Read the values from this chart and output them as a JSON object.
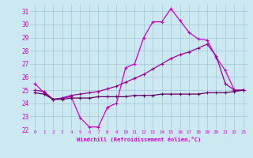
{
  "xlabel": "Windchill (Refroidissement éolien,°C)",
  "bg_color": "#cce8f0",
  "grid_color": "#aaccdd",
  "x_values": [
    0,
    1,
    2,
    3,
    4,
    5,
    6,
    7,
    8,
    9,
    10,
    11,
    12,
    13,
    14,
    15,
    16,
    17,
    18,
    19,
    20,
    21,
    22,
    23
  ],
  "line1": [
    25.5,
    24.8,
    24.3,
    24.4,
    24.5,
    22.9,
    22.2,
    22.2,
    23.7,
    24.0,
    26.7,
    27.0,
    29.0,
    30.2,
    30.2,
    31.2,
    30.3,
    29.4,
    28.9,
    28.8,
    27.5,
    26.5,
    25.0,
    25.0
  ],
  "line2": [
    25.0,
    24.9,
    24.3,
    24.4,
    24.6,
    24.7,
    24.8,
    24.9,
    25.1,
    25.3,
    25.6,
    25.9,
    26.2,
    26.6,
    27.0,
    27.4,
    27.7,
    27.9,
    28.2,
    28.5,
    27.6,
    25.5,
    25.0,
    25.0
  ],
  "line3": [
    24.8,
    24.7,
    24.3,
    24.3,
    24.4,
    24.4,
    24.4,
    24.5,
    24.5,
    24.5,
    24.5,
    24.6,
    24.6,
    24.6,
    24.7,
    24.7,
    24.7,
    24.7,
    24.7,
    24.8,
    24.8,
    24.8,
    24.9,
    25.0
  ],
  "ylim": [
    22,
    31.5
  ],
  "xlim": [
    -0.5,
    23.5
  ],
  "yticks": [
    22,
    23,
    24,
    25,
    26,
    27,
    28,
    29,
    30,
    31
  ],
  "xtick_labels": [
    "0",
    "1",
    "2",
    "3",
    "4",
    "5",
    "6",
    "7",
    "8",
    "9",
    "10",
    "11",
    "12",
    "13",
    "14",
    "15",
    "16",
    "17",
    "18",
    "19",
    "20",
    "21",
    "22",
    "23"
  ],
  "color1": "#cc00cc",
  "color2": "#990099",
  "color3": "#660066"
}
